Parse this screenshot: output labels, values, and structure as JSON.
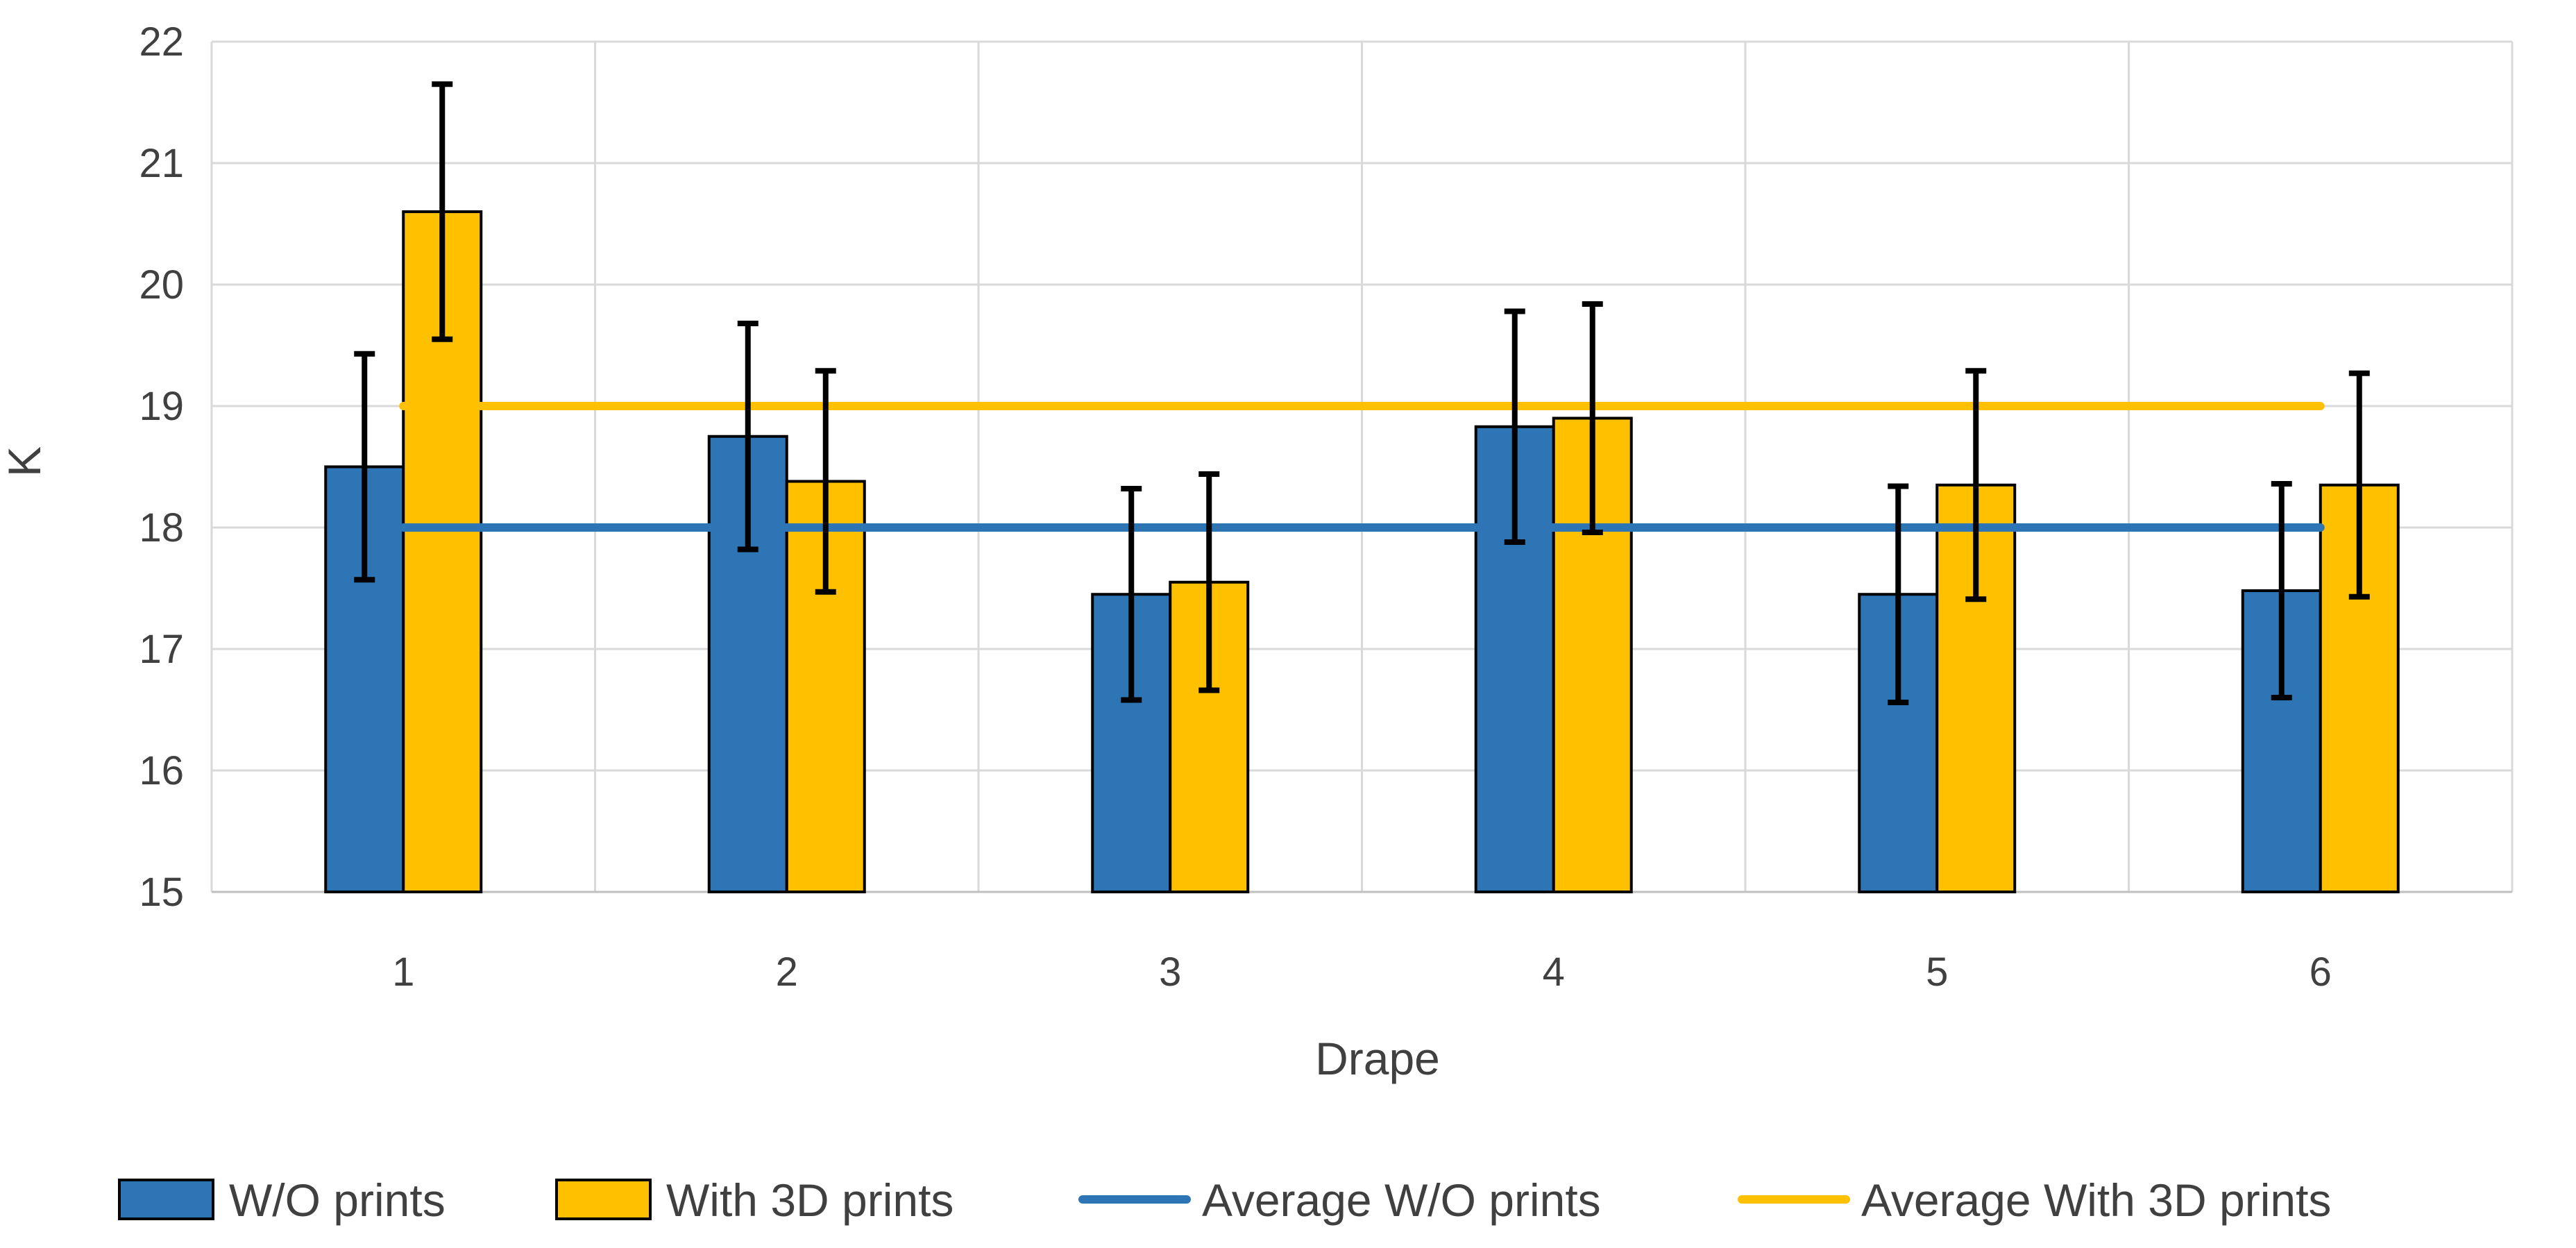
{
  "chart_data": {
    "type": "bar",
    "title": "",
    "xlabel": "Drape",
    "ylabel": "K",
    "ylim": [
      15,
      22
    ],
    "yticks": [
      15,
      16,
      17,
      18,
      19,
      20,
      21,
      22
    ],
    "grid": true,
    "categories": [
      "1",
      "2",
      "3",
      "4",
      "5",
      "6"
    ],
    "series": [
      {
        "name": "W/O prints",
        "kind": "bar",
        "color": "#2E75B6",
        "values": [
          18.5,
          18.75,
          17.45,
          18.83,
          17.45,
          17.48
        ],
        "error": [
          0.93,
          0.93,
          0.87,
          0.95,
          0.89,
          0.88
        ]
      },
      {
        "name": "With 3D prints",
        "kind": "bar",
        "color": "#FFC000",
        "values": [
          20.6,
          18.38,
          17.55,
          18.9,
          18.35,
          18.35
        ],
        "error": [
          1.05,
          0.91,
          0.89,
          0.94,
          0.94,
          0.92
        ]
      },
      {
        "name": "Average W/O prints",
        "kind": "line",
        "color": "#2E75B6",
        "value": 18.0
      },
      {
        "name": "Average With 3D prints",
        "kind": "line",
        "color": "#FFC000",
        "value": 19.0
      }
    ],
    "legend_position": "bottom"
  }
}
